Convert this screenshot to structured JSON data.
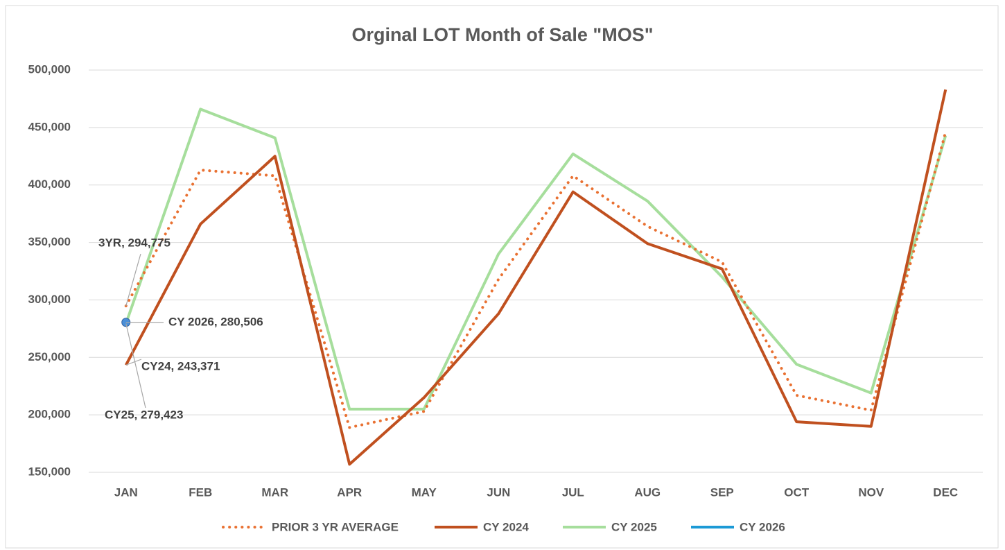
{
  "chart_data": {
    "type": "line",
    "title": "Orginal LOT Month of Sale \"MOS\"",
    "categories": [
      "JAN",
      "FEB",
      "MAR",
      "APR",
      "MAY",
      "JUN",
      "JUL",
      "AUG",
      "SEP",
      "OCT",
      "NOV",
      "DEC"
    ],
    "series": [
      {
        "name": "PRIOR 3 YR AVERAGE",
        "color": "#E97132",
        "line_style": "dotted",
        "values": [
          294775,
          413000,
          408000,
          189000,
          203000,
          318000,
          408000,
          364000,
          333000,
          217000,
          204000,
          446000
        ],
        "value_labels": [
          "3YR, 294,775",
          null,
          null,
          null,
          null,
          null,
          null,
          null,
          null,
          null,
          null,
          null
        ]
      },
      {
        "name": "CY 2024",
        "color": "#C0501F",
        "line_style": "solid",
        "values": [
          243371,
          366000,
          425000,
          157000,
          215000,
          288000,
          394000,
          349000,
          327000,
          194000,
          190000,
          483000
        ],
        "value_labels": [
          "CY24, 243,371",
          null,
          null,
          null,
          null,
          null,
          null,
          null,
          null,
          null,
          null,
          null
        ]
      },
      {
        "name": "CY 2025",
        "color": "#A6DE9C",
        "line_style": "solid",
        "values": [
          279423,
          466000,
          441000,
          205000,
          205000,
          340000,
          427000,
          386000,
          320000,
          244000,
          219000,
          443000
        ],
        "value_labels": [
          "CY25,  279,423",
          null,
          null,
          null,
          null,
          null,
          null,
          null,
          null,
          null,
          null,
          null
        ]
      },
      {
        "name": "CY 2026",
        "color": "#1C9AD6",
        "line_style": "solid",
        "values": [
          280506,
          null,
          null,
          null,
          null,
          null,
          null,
          null,
          null,
          null,
          null,
          null
        ],
        "value_labels": [
          "CY 2026,  280,506",
          null,
          null,
          null,
          null,
          null,
          null,
          null,
          null,
          null,
          null,
          null
        ]
      }
    ],
    "ylim": [
      150000,
      500000
    ],
    "yticks": [
      {
        "value": 150000,
        "label": "150,000"
      },
      {
        "value": 200000,
        "label": "200,000"
      },
      {
        "value": 250000,
        "label": "250,000"
      },
      {
        "value": 300000,
        "label": "300,000"
      },
      {
        "value": 350000,
        "label": "350,000"
      },
      {
        "value": 400000,
        "label": "400,000"
      },
      {
        "value": 450000,
        "label": "450,000"
      },
      {
        "value": 500000,
        "label": "500,000"
      }
    ],
    "grid": true,
    "legend": "bottom"
  }
}
